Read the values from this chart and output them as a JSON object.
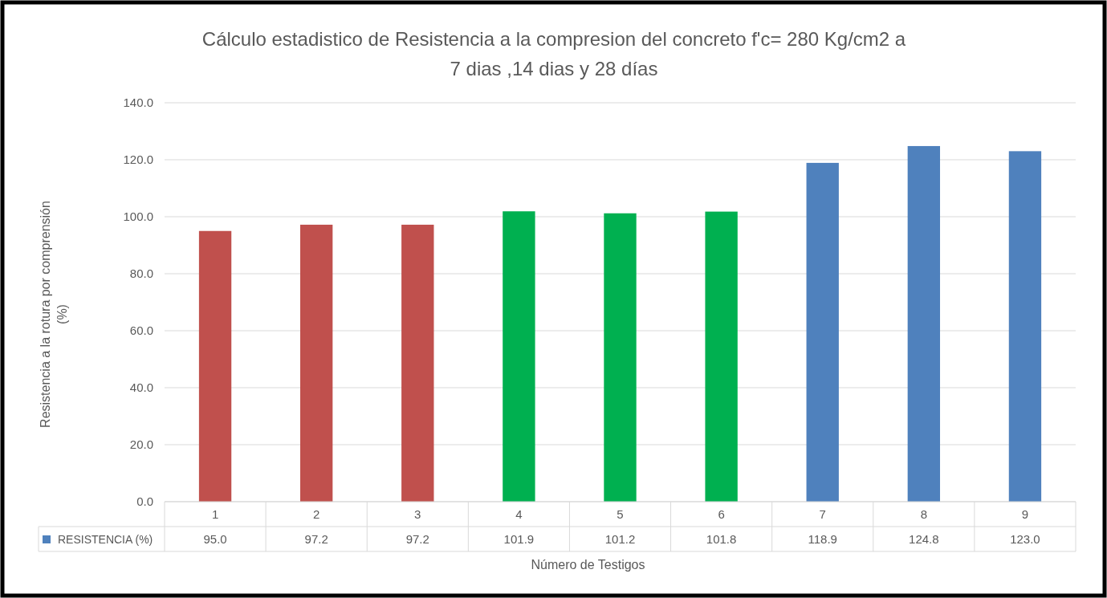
{
  "chart_data": {
    "type": "bar",
    "title": "Cálculo estadistico de Resistencia a la compresion del concreto f'c= 280 Kg/cm2 a\n7 dias ,14 dias y 28 días",
    "xlabel": "Número de Testigos",
    "ylabel": "Resistencia a la rotura por comprensión\n(%)",
    "categories": [
      "1",
      "2",
      "3",
      "4",
      "5",
      "6",
      "7",
      "8",
      "9"
    ],
    "series": [
      {
        "name": "RESISTENCIA (%)",
        "color": "#4f81bd",
        "colors": [
          "#c0504d",
          "#c0504d",
          "#c0504d",
          "#00b050",
          "#00b050",
          "#00b050",
          "#4f81bd",
          "#4f81bd",
          "#4f81bd"
        ],
        "values": [
          95.0,
          97.2,
          97.2,
          101.9,
          101.2,
          101.8,
          118.9,
          124.8,
          123.0
        ],
        "value_labels": [
          "95.0",
          "97.2",
          "97.2",
          "101.9",
          "101.2",
          "101.8",
          "118.9",
          "124.8",
          "123.0"
        ]
      }
    ],
    "ylim": [
      0,
      140
    ],
    "yticks": [
      {
        "value": 0,
        "label": "0.0"
      },
      {
        "value": 20,
        "label": "20.0"
      },
      {
        "value": 40,
        "label": "40.0"
      },
      {
        "value": 60,
        "label": "60.0"
      },
      {
        "value": 80,
        "label": "80.0"
      },
      {
        "value": 100,
        "label": "100.0"
      },
      {
        "value": 120,
        "label": "120.0"
      },
      {
        "value": 140,
        "label": "140.0"
      }
    ],
    "grid": "y",
    "legend": "bottom",
    "data_labels": true
  }
}
